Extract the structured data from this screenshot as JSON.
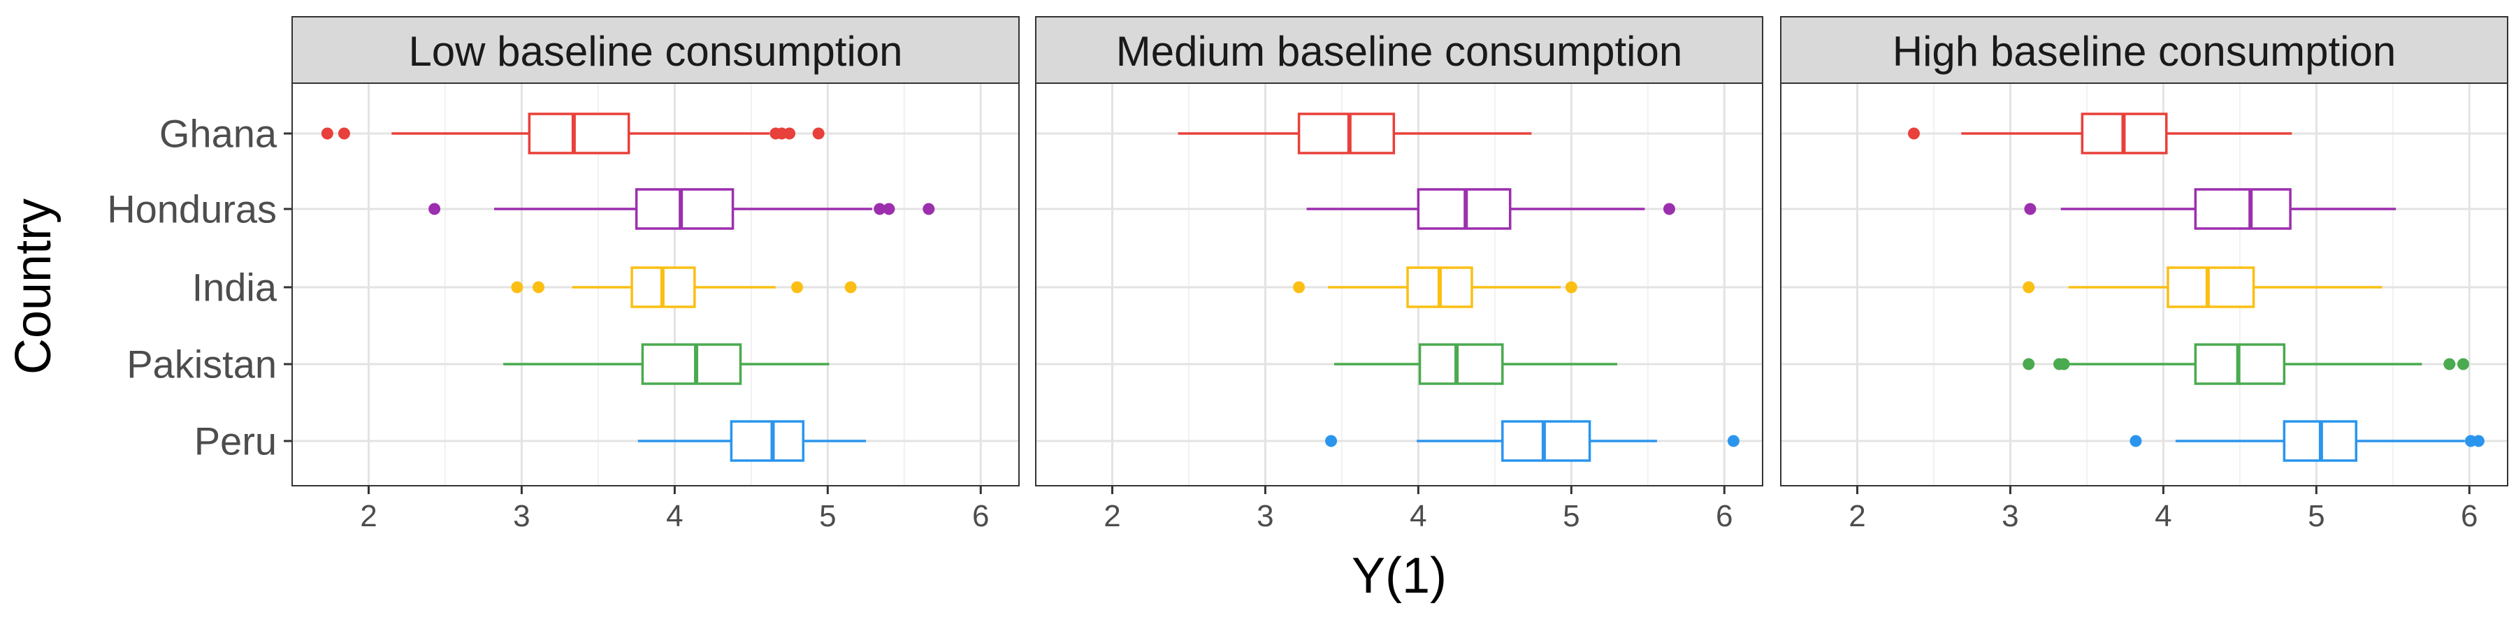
{
  "chart_data": {
    "type": "boxplot",
    "orientation": "horizontal",
    "xlabel": "Y(1)",
    "ylabel": "Country",
    "xlim": [
      1.5,
      6.25
    ],
    "x_ticks": [
      2,
      3,
      4,
      5,
      6
    ],
    "x_tick_labels": [
      "2",
      "3",
      "4",
      "5",
      "6"
    ],
    "grid": true,
    "legend": "none",
    "categories": [
      "Ghana",
      "Honduras",
      "India",
      "Pakistan",
      "Peru"
    ],
    "colors": {
      "Ghana": "#e8403a",
      "Honduras": "#9c2fae",
      "India": "#fbbf13",
      "Pakistan": "#4aaa4f",
      "Peru": "#2b95ee"
    },
    "panels": [
      {
        "title": "Low baseline consumption",
        "boxes": [
          {
            "country": "Ghana",
            "whisker_low": 2.15,
            "q1": 3.05,
            "median": 3.34,
            "q3": 3.7,
            "whisker_high": 4.62,
            "outliers": [
              1.73,
              1.84,
              4.66,
              4.7,
              4.75,
              4.94
            ]
          },
          {
            "country": "Honduras",
            "whisker_low": 2.82,
            "q1": 3.75,
            "median": 4.04,
            "q3": 4.38,
            "whisker_high": 5.29,
            "outliers": [
              2.43,
              5.34,
              5.4,
              5.66
            ]
          },
          {
            "country": "India",
            "whisker_low": 3.33,
            "q1": 3.72,
            "median": 3.92,
            "q3": 4.13,
            "whisker_high": 4.66,
            "outliers": [
              2.97,
              3.11,
              4.8,
              5.15
            ]
          },
          {
            "country": "Pakistan",
            "whisker_low": 2.88,
            "q1": 3.79,
            "median": 4.14,
            "q3": 4.43,
            "whisker_high": 5.01,
            "outliers": []
          },
          {
            "country": "Peru",
            "whisker_low": 3.76,
            "q1": 4.37,
            "median": 4.64,
            "q3": 4.84,
            "whisker_high": 5.25,
            "outliers": []
          }
        ]
      },
      {
        "title": "Medium baseline consumption",
        "boxes": [
          {
            "country": "Ghana",
            "whisker_low": 2.43,
            "q1": 3.22,
            "median": 3.55,
            "q3": 3.84,
            "whisker_high": 4.74,
            "outliers": []
          },
          {
            "country": "Honduras",
            "whisker_low": 3.27,
            "q1": 4.0,
            "median": 4.31,
            "q3": 4.6,
            "whisker_high": 5.48,
            "outliers": [
              5.64
            ]
          },
          {
            "country": "India",
            "whisker_low": 3.41,
            "q1": 3.93,
            "median": 4.14,
            "q3": 4.35,
            "whisker_high": 4.93,
            "outliers": [
              3.22,
              5.0
            ]
          },
          {
            "country": "Pakistan",
            "whisker_low": 3.45,
            "q1": 4.01,
            "median": 4.25,
            "q3": 4.55,
            "whisker_high": 5.3,
            "outliers": []
          },
          {
            "country": "Peru",
            "whisker_low": 3.99,
            "q1": 4.55,
            "median": 4.82,
            "q3": 5.12,
            "whisker_high": 5.56,
            "outliers": [
              3.43,
              6.06
            ]
          }
        ]
      },
      {
        "title": "High baseline consumption",
        "boxes": [
          {
            "country": "Ghana",
            "whisker_low": 2.68,
            "q1": 3.47,
            "median": 3.74,
            "q3": 4.02,
            "whisker_high": 4.84,
            "outliers": [
              2.37
            ]
          },
          {
            "country": "Honduras",
            "whisker_low": 3.33,
            "q1": 4.21,
            "median": 4.57,
            "q3": 4.83,
            "whisker_high": 5.52,
            "outliers": [
              3.13
            ]
          },
          {
            "country": "India",
            "whisker_low": 3.38,
            "q1": 4.03,
            "median": 4.29,
            "q3": 4.59,
            "whisker_high": 5.43,
            "outliers": [
              3.12
            ]
          },
          {
            "country": "Pakistan",
            "whisker_low": 3.36,
            "q1": 4.21,
            "median": 4.49,
            "q3": 4.79,
            "whisker_high": 5.69,
            "outliers": [
              3.12,
              3.32,
              3.35,
              5.87,
              5.96
            ]
          },
          {
            "country": "Peru",
            "whisker_low": 4.08,
            "q1": 4.79,
            "median": 5.03,
            "q3": 5.26,
            "whisker_high": 5.97,
            "outliers": [
              3.82,
              6.01,
              6.06
            ]
          }
        ]
      }
    ]
  }
}
